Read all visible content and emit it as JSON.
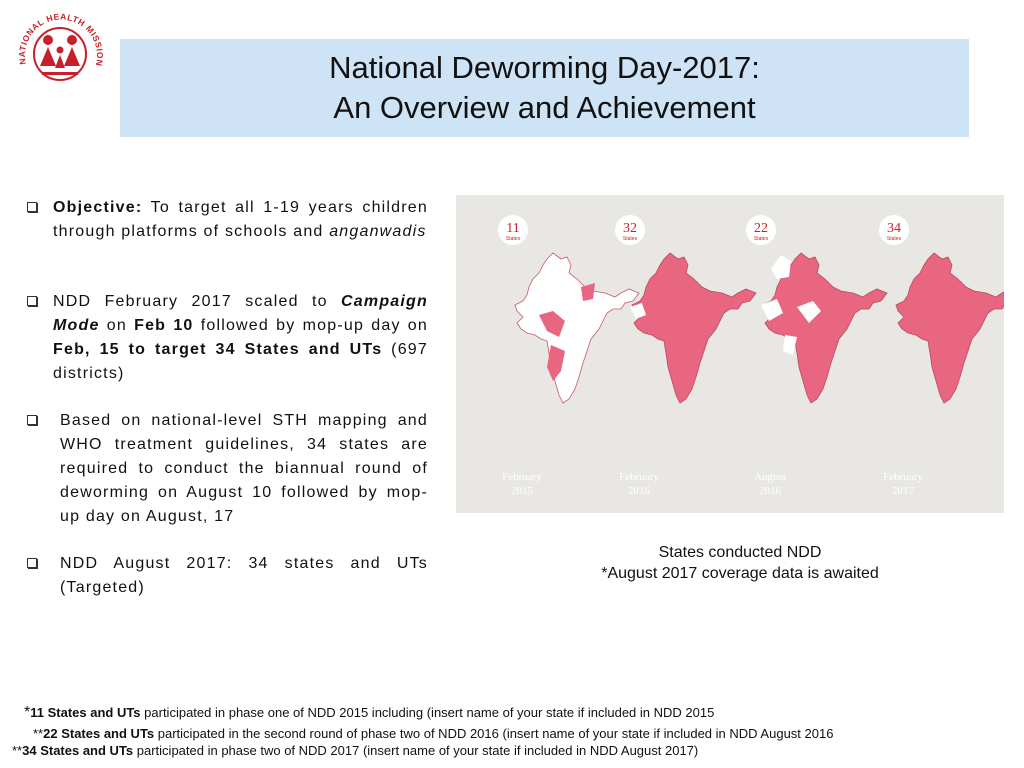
{
  "logo": {
    "text": "NATIONAL HEALTH MISSION"
  },
  "title": {
    "line1": "National Deworming Day-2017:",
    "line2": "An Overview and Achievement"
  },
  "bullets": [
    {
      "label": "Objective:",
      "text": " To target all 1-19 years children through platforms of schools and ",
      "italic": "anganwadis"
    },
    {
      "t1": "NDD February 2017 scaled to ",
      "campaign": "Campaign Mode",
      "t2": " on ",
      "feb10": "Feb 10",
      "t3": " followed by mop-up day on ",
      "feb15": "Feb, 15 to target 34 States and UTs",
      "t4": " (697 districts)"
    },
    {
      "text": "Based on national-level STH  mapping and WHO treatment guidelines, 34 states are required to conduct the biannual round of deworming on August 10 followed by mop-up day on August, 17"
    },
    {
      "text": "NDD August 2017: 34 states and UTs (Targeted)"
    }
  ],
  "maps": [
    {
      "count": "11",
      "unit": "States",
      "month": "February",
      "year": "2015",
      "color": "#e8667f"
    },
    {
      "count": "32",
      "unit": "States",
      "month": "February",
      "year": "2016",
      "color": "#e8667f"
    },
    {
      "count": "22",
      "unit": "States",
      "month": "August",
      "year": "2016",
      "color": "#e8667f"
    },
    {
      "count": "34",
      "unit": "States",
      "month": "February",
      "year": "2017",
      "color": "#e8667f"
    }
  ],
  "caption": {
    "line1": "States conducted NDD",
    "line2": "*August 2017 coverage data is awaited"
  },
  "footnotes": [
    {
      "prefix": "*",
      "bold": "11 States and UTs",
      "text": " participated in  phase one of NDD 2015 including (insert name of  your state if included in NDD 2015"
    },
    {
      "prefix": "**",
      "bold": "22 States and UTs",
      "text": " participated in the second round of phase two of NDD 2016 (insert name of your state if included in NDD August 2016"
    },
    {
      "prefix": "**",
      "bold": "34 States and UTs",
      "text": " participated in phase two of NDD 2017 (insert name of your state if included in NDD August 2017)"
    }
  ]
}
